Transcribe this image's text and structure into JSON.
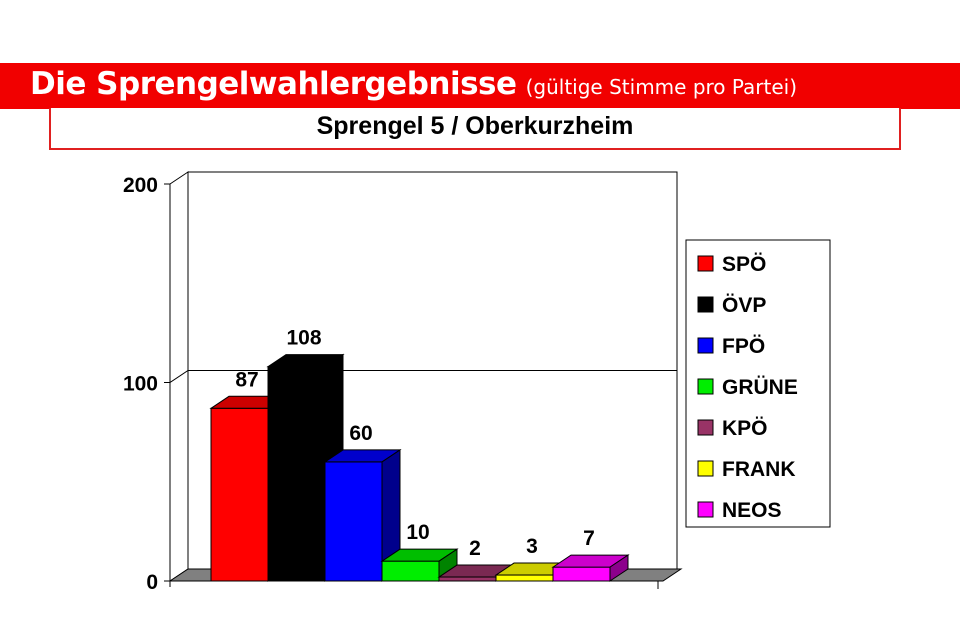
{
  "header": {
    "title": "Die Sprengelwahlergebnisse",
    "title_suffix": "(gültige Stimme pro Partei)"
  },
  "chart_data": {
    "type": "bar",
    "title": "Sprengel 5 / Oberkurzheim",
    "categories": [
      "SPÖ",
      "ÖVP",
      "FPÖ",
      "GRÜNE",
      "KPÖ",
      "FRANK",
      "NEOS"
    ],
    "values": [
      87,
      108,
      60,
      10,
      2,
      3,
      7
    ],
    "colors": [
      "#ff0000",
      "#000000",
      "#0000ff",
      "#00ee00",
      "#993366",
      "#ffff00",
      "#ff00ff"
    ],
    "ylim": [
      0,
      200
    ],
    "yticks": [
      "0",
      "100",
      "200"
    ],
    "style": "3d",
    "grid": true,
    "legend_position": "right"
  }
}
